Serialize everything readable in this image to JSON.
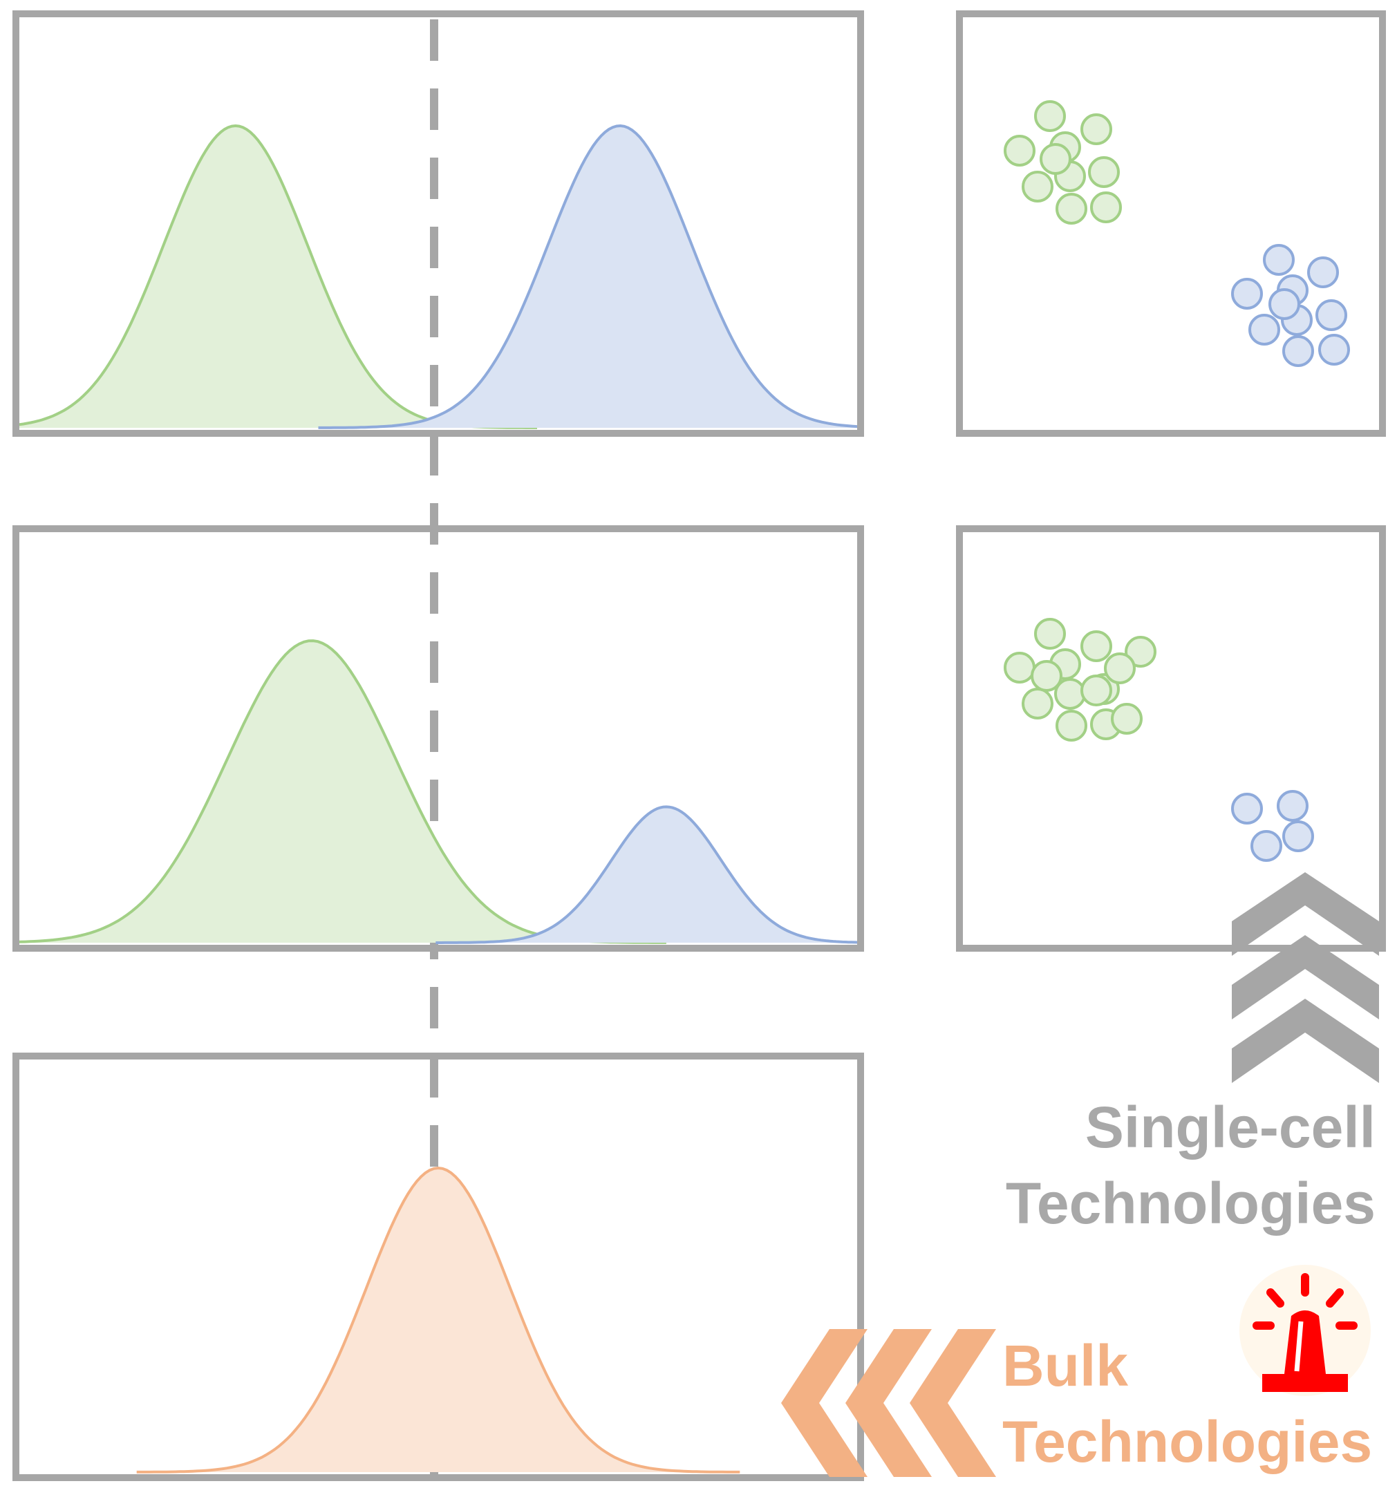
{
  "colors": {
    "frame": "#a6a6a6",
    "green_stroke": "#a2d086",
    "green_fill": "#e2f0d9",
    "blue_stroke": "#8eaadb",
    "blue_fill": "#dae3f3",
    "orange_stroke": "#f4b183",
    "orange_fill": "#fbe5d6",
    "alarm_red": "#ff0000",
    "label_gray": "#a8a8a8",
    "label_orange": "#f3b184"
  },
  "labels": {
    "single_cell_line1": "Single-cell",
    "single_cell_line2": "Technologies",
    "bulk_line1": "Bulk",
    "bulk_line2": "Technologies"
  },
  "icons": [
    "chevron-up-icon",
    "chevron-left-icon",
    "alarm-light-icon"
  ],
  "rows": [
    {
      "name": "well-separated",
      "curves": [
        {
          "color": "green",
          "center": 0.26,
          "peak": 1.0,
          "width": 0.085
        },
        {
          "color": "blue",
          "center": 0.715,
          "peak": 1.0,
          "width": 0.085
        }
      ],
      "clusters": [
        {
          "color": "green",
          "cells": 10
        },
        {
          "color": "blue",
          "cells": 10
        }
      ]
    },
    {
      "name": "unequal-populations",
      "curves": [
        {
          "color": "green",
          "center": 0.35,
          "peak": 1.0,
          "width": 0.1
        },
        {
          "color": "blue",
          "center": 0.77,
          "peak": 0.45,
          "width": 0.065
        }
      ],
      "clusters": [
        {
          "color": "green",
          "cells": 14
        },
        {
          "color": "blue",
          "cells": 4
        }
      ]
    },
    {
      "name": "bulk-average",
      "curves": [
        {
          "color": "orange",
          "center": 0.5,
          "peak": 1.0,
          "width": 0.085
        }
      ]
    }
  ]
}
